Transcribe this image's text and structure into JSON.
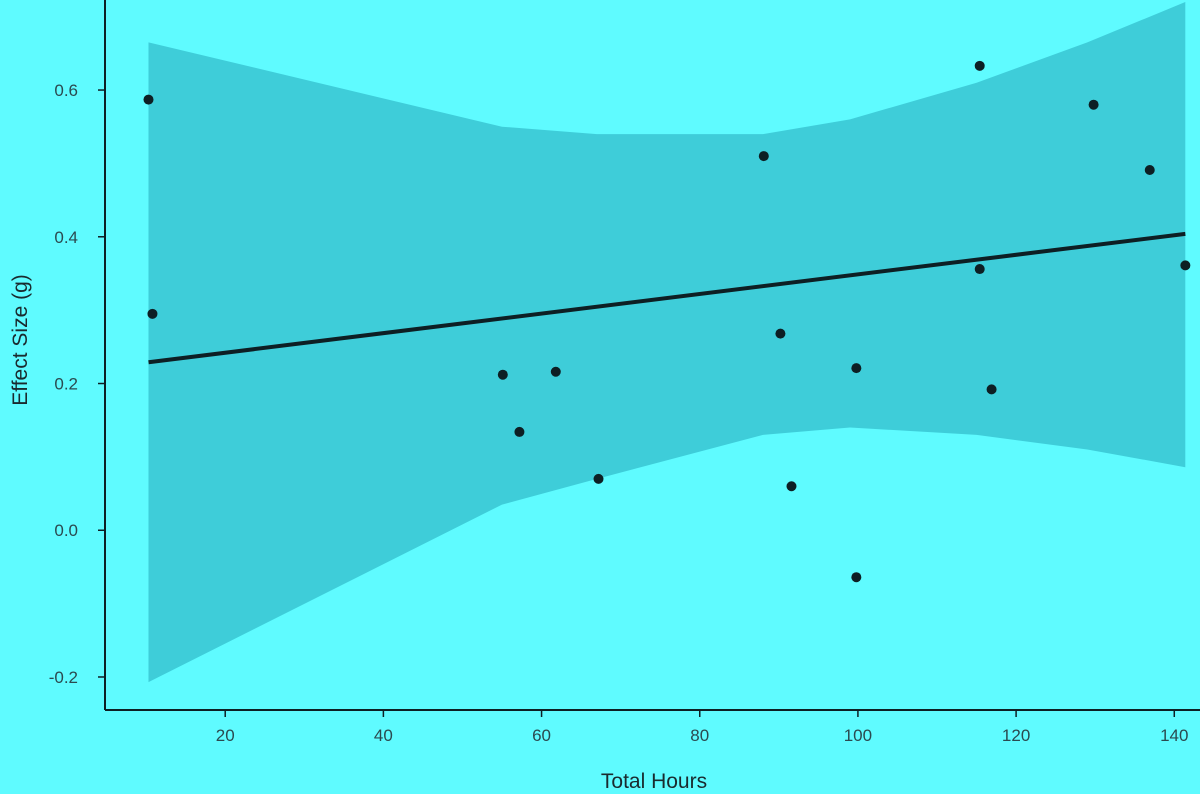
{
  "colors": {
    "background": "#5ffbff",
    "ribbon": "#3ecdd9",
    "line": "#0d1f24",
    "points": "#0d1f24",
    "axis": "#0d1f24",
    "tick_text": "#2b4a50"
  },
  "chart_data": {
    "type": "scatter",
    "title": "",
    "xlabel": "Total Hours",
    "ylabel": "Effect Size (g)",
    "xlim": [
      4.8,
      143
    ],
    "ylim": [
      -0.245,
      0.72
    ],
    "x_ticks": [
      20,
      40,
      60,
      80,
      100,
      120,
      140
    ],
    "x_tick_labels": [
      "20",
      "40",
      "60",
      "80",
      "100",
      "120",
      "140"
    ],
    "y_ticks": [
      -0.2,
      0.0,
      0.2,
      0.4,
      0.6
    ],
    "y_tick_labels": [
      "-0.2",
      "0.0",
      "0.2",
      "0.4",
      "0.6"
    ],
    "grid": false,
    "legend": "none",
    "series": [
      {
        "points": [
          {
            "x": 10.3,
            "y": 0.587
          },
          {
            "x": 10.8,
            "y": 0.295
          },
          {
            "x": 55.1,
            "y": 0.212
          },
          {
            "x": 57.2,
            "y": 0.134
          },
          {
            "x": 61.8,
            "y": 0.216
          },
          {
            "x": 67.2,
            "y": 0.07
          },
          {
            "x": 88.1,
            "y": 0.51
          },
          {
            "x": 90.2,
            "y": 0.268
          },
          {
            "x": 91.6,
            "y": 0.06
          },
          {
            "x": 99.8,
            "y": 0.221
          },
          {
            "x": 99.8,
            "y": -0.064
          },
          {
            "x": 115.4,
            "y": 0.633
          },
          {
            "x": 115.4,
            "y": 0.356
          },
          {
            "x": 116.9,
            "y": 0.192
          },
          {
            "x": 129.8,
            "y": 0.58
          },
          {
            "x": 136.9,
            "y": 0.491
          },
          {
            "x": 141.4,
            "y": 0.361
          }
        ]
      }
    ],
    "fit_line": {
      "type": "linear",
      "x": [
        10.3,
        141.4
      ],
      "y": [
        0.229,
        0.404
      ]
    },
    "confidence_band": {
      "x": [
        10.3,
        55,
        67,
        88,
        99,
        115,
        129,
        141.4
      ],
      "upper": [
        0.665,
        0.55,
        0.54,
        0.54,
        0.56,
        0.61,
        0.665,
        0.72
      ],
      "lower": [
        -0.207,
        0.035,
        0.07,
        0.13,
        0.14,
        0.13,
        0.11,
        0.086
      ]
    }
  }
}
